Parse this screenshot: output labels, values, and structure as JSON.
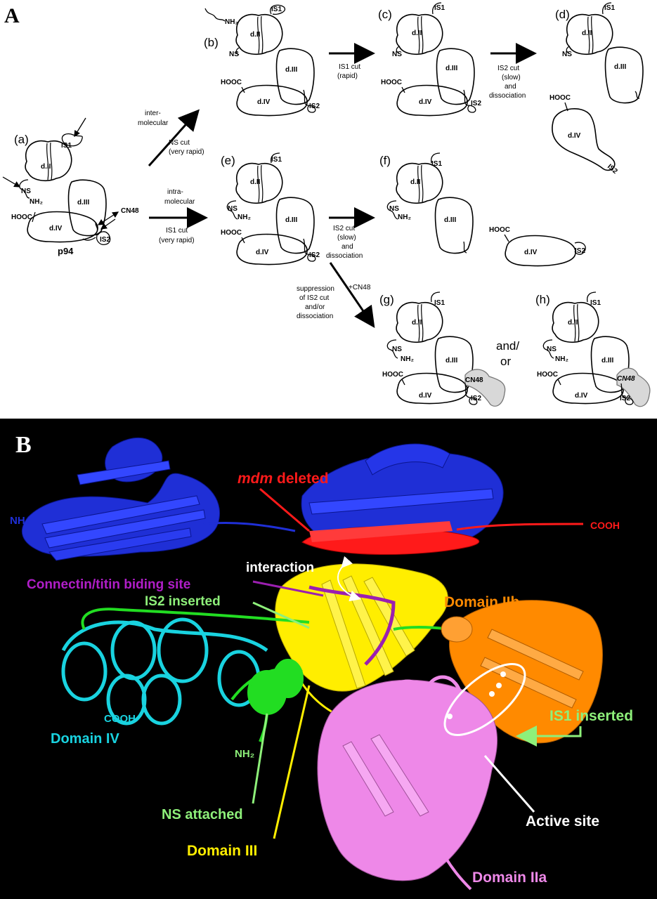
{
  "panelA": {
    "label": "A",
    "steps": {
      "a": "(a)",
      "b": "(b)",
      "c": "(c)",
      "d": "(d)",
      "e": "(e)",
      "f": "(f)",
      "g": "(g)",
      "h": "(h)"
    },
    "domains": {
      "dII": "d.II",
      "dIII": "d.III",
      "dIV": "d.IV"
    },
    "sites": {
      "IS1": "IS1",
      "IS2": "IS2",
      "NS": "NS",
      "NH2": "NH₂",
      "HOOC": "HOOC",
      "CN48": "CN48"
    },
    "protein": "p94",
    "arrows": {
      "intermolecular_1": "inter-",
      "intermolecular_2": "molecular",
      "ns_cut_1": "NS cut",
      "ns_cut_2": "(very rapid)",
      "intramolecular_1": "intra-",
      "intramolecular_2": "molecular",
      "is1_cut_1": "IS1 cut",
      "is1_cut_2": "(very rapid)",
      "is1_cut_rapid_1": "IS1 cut",
      "is1_cut_rapid_2": "(rapid)",
      "is2_slow_1": "IS2 cut",
      "is2_slow_2": "(slow)",
      "is2_slow_3": "and",
      "is2_slow_4": "dissociation",
      "suppression_1": "suppression",
      "suppression_2": "of IS2 cut",
      "suppression_3": "and/or",
      "suppression_4": "dissociation",
      "plus_cn48": "+CN48"
    },
    "andor_1": "and/",
    "andor_2": "or"
  },
  "panelB": {
    "label": "B",
    "labels": {
      "mdm": "mdm",
      "deleted": " deleted",
      "cooh_red": "COOH",
      "nh2_blue": "NH₂",
      "interaction": "interaction",
      "titin": "Connectin/titin biding site",
      "is2_inserted": "IS2 inserted",
      "domain_iib": "Domain IIb",
      "cooh_cyan": "COOH",
      "domain_iv": "Domain IV",
      "nh2_green": "NH₂",
      "ns_attached": "NS attached",
      "domain_iii": "Domain III",
      "is1_inserted": "IS1 inserted",
      "active_site": "Active site",
      "domain_iia": "Domain IIa"
    },
    "colors": {
      "domain_i": "#1f2fd6",
      "mdm": "#ff1a1a",
      "domain_iii": "#ffee00",
      "domain_iv": "#19d3e0",
      "domain_iia": "#ee88e8",
      "domain_iib": "#ff8a00",
      "insert": "#22dd22",
      "titin": "#9b1fb0"
    }
  }
}
